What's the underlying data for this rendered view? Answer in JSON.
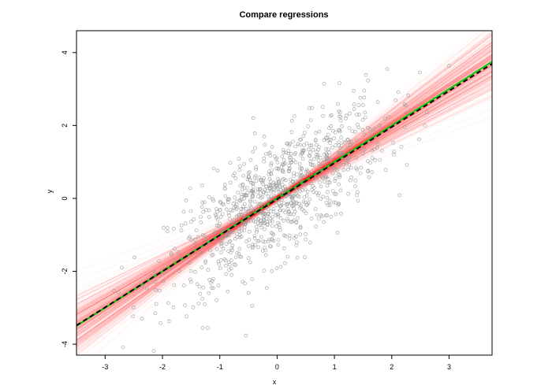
{
  "chart_data": {
    "type": "scatter",
    "title": "Compare regressions",
    "xlabel": "x",
    "ylabel": "y",
    "xlim": [
      -3.5,
      3.75
    ],
    "ylim": [
      -4.3,
      4.6
    ],
    "grid": false,
    "legend": "none",
    "xticks": [
      -3,
      -2,
      -1,
      0,
      1,
      2,
      3
    ],
    "yticks": [
      -4,
      -2,
      0,
      2,
      4
    ],
    "points": {
      "name": "",
      "color": "#999999",
      "count": 1000,
      "x_mean": 0,
      "x_sd": 0.95,
      "slope": 1.0,
      "intercept": 0.0,
      "residual_sd": 0.8
    },
    "lines": [
      {
        "name": "",
        "slope": 1.0,
        "intercept": 0.0,
        "color": "#00cc00",
        "style": "solid",
        "width": 2
      },
      {
        "name": "",
        "slope": 0.99,
        "intercept": -0.02,
        "color": "#000000",
        "style": "dashed",
        "width": 2
      }
    ],
    "bootstrap_lines": {
      "count": 300,
      "color": "#ff0000",
      "opacity": 0.05,
      "slope_mean": 1.0,
      "slope_sd": 0.12,
      "intercept_sd": 0.05
    }
  }
}
